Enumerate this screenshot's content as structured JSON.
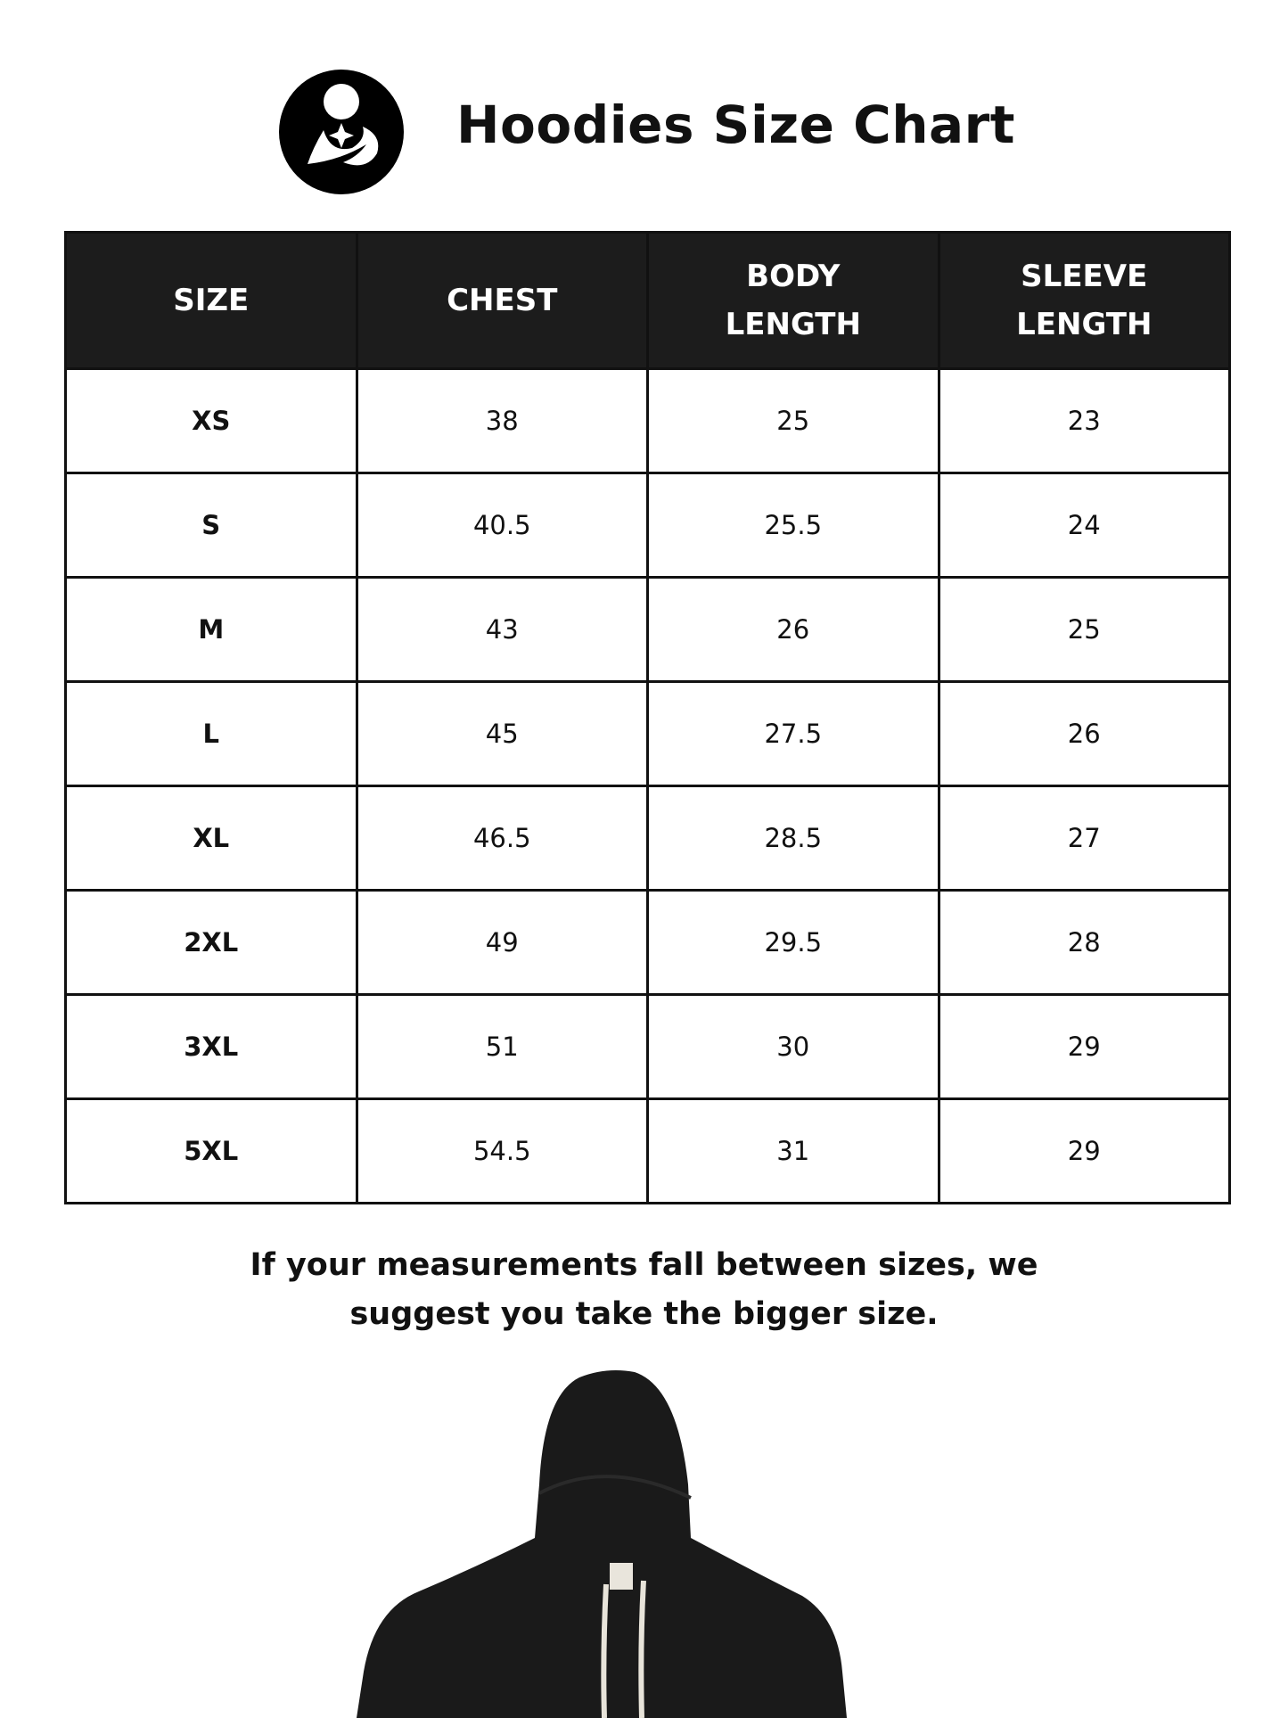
{
  "header": {
    "title": "Hoodies Size Chart",
    "logo_icon": "mother-holding-baby-logo"
  },
  "table": {
    "columns": [
      {
        "line1": "SIZE",
        "line2": ""
      },
      {
        "line1": "CHEST",
        "line2": ""
      },
      {
        "line1": "BODY",
        "line2": "LENGTH"
      },
      {
        "line1": "SLEEVE",
        "line2": "LENGTH"
      }
    ],
    "rows": [
      [
        "XS",
        "38",
        "25",
        "23"
      ],
      [
        "S",
        "40.5",
        "25.5",
        "24"
      ],
      [
        "M",
        "43",
        "26",
        "25"
      ],
      [
        "L",
        "45",
        "27.5",
        "26"
      ],
      [
        "XL",
        "46.5",
        "28.5",
        "27"
      ],
      [
        "2XL",
        "49",
        "29.5",
        "28"
      ],
      [
        "3XL",
        "51",
        "30",
        "29"
      ],
      [
        "5XL",
        "54.5",
        "31",
        "29"
      ]
    ]
  },
  "note": {
    "line1": "If your measurements fall between sizes, we",
    "line2": "suggest you take the bigger size."
  },
  "image": {
    "subject": "black-hoodie",
    "color": "#1a1a1a"
  }
}
